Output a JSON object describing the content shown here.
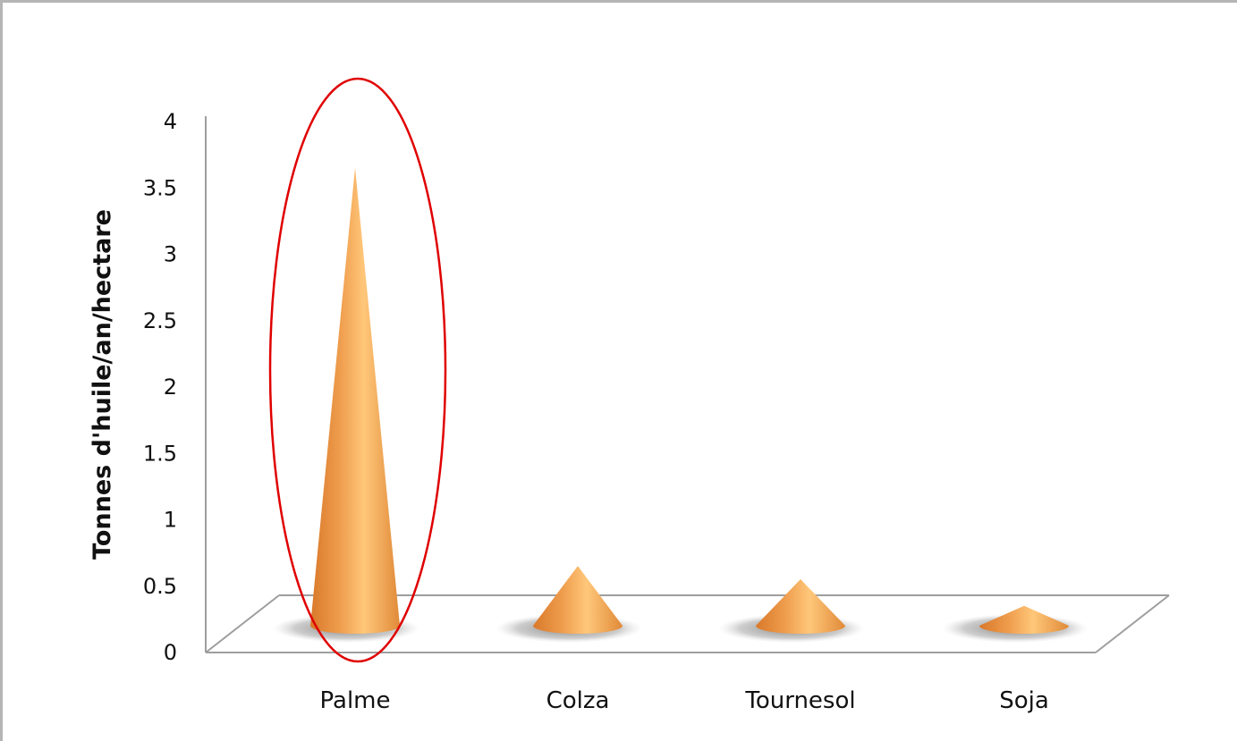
{
  "chart_data": {
    "type": "bar",
    "style": "3d-cone",
    "categories": [
      "Palme",
      "Colza",
      "Tournesol",
      "Soja"
    ],
    "values": [
      3.8,
      0.8,
      0.7,
      0.5
    ],
    "ylabel": "Tonnes d'huile/an/hectare",
    "xlabel": "",
    "ylim": [
      0,
      4
    ],
    "yticks": [
      "0",
      "0.5",
      "1",
      "1.5",
      "2",
      "2.5",
      "3",
      "3.5",
      "4"
    ],
    "grid": false,
    "legend": "none",
    "highlight": {
      "category": "Palme",
      "shape": "ellipse",
      "color": "#e00000"
    },
    "colors": {
      "cone_dark": "#d9782a",
      "cone_light": "#ffc77a",
      "shadow": "#8c8c8c",
      "floor": "#9e9e9e"
    }
  }
}
